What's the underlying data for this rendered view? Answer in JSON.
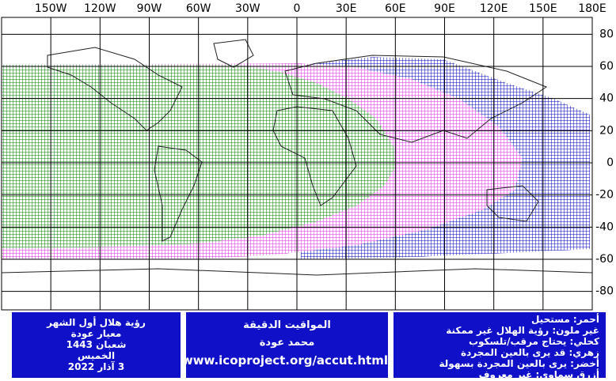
{
  "map": {
    "xticks": [
      {
        "value": -150,
        "label": "150W"
      },
      {
        "value": -120,
        "label": "120W"
      },
      {
        "value": -90,
        "label": "90W"
      },
      {
        "value": -60,
        "label": "60W"
      },
      {
        "value": -30,
        "label": "30W"
      },
      0,
      {
        "value": 30,
        "label": "30E"
      },
      {
        "value": 60,
        "label": "60E"
      },
      {
        "value": 90,
        "label": "90E"
      },
      {
        "value": 120,
        "label": "120E"
      },
      {
        "value": 150,
        "label": "150E"
      },
      {
        "value": 180,
        "label": "180E"
      }
    ],
    "yticks": [
      80,
      60,
      40,
      20,
      0,
      -20,
      -40,
      -60,
      -80
    ]
  },
  "boxes": [
    {
      "lines": [
        "رؤية هلال أول الشهر",
        "معيار عودة",
        "شعبان 1443",
        "الخميس",
        "3 آذار 2022"
      ]
    },
    {
      "lines": [
        "المواقيت الدقيقة",
        "محمد عودة",
        "www.icoproject.org/accut.html"
      ]
    },
    {
      "lines": [
        "أحمر: مستحيل",
        "غير ملون: رؤية الهلال غير ممكنة",
        "كحلي: يحتاج مرقب/تلسكوب",
        "زهري: قد يرى بالعين المجردة",
        "أخضر: يرى بالعين المجردة بسهولة",
        "أزرق سماوي: غير معروف"
      ]
    }
  ]
}
